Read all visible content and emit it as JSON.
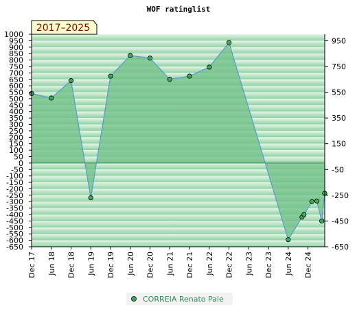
{
  "chart_data": {
    "type": "area",
    "title": "WOF ratinglist",
    "period_badge": "2017–2025",
    "left_y_ticks": [
      1000,
      950,
      900,
      850,
      800,
      750,
      700,
      650,
      600,
      550,
      500,
      450,
      400,
      350,
      300,
      250,
      200,
      150,
      100,
      50,
      0,
      -50,
      -100,
      -150,
      -200,
      -250,
      -300,
      -350,
      -400,
      -450,
      -500,
      -550,
      -600,
      -650
    ],
    "right_y_ticks": [
      950,
      750,
      550,
      350,
      150,
      -50,
      -250,
      -450,
      -650
    ],
    "ylim": [
      -650,
      1000
    ],
    "x_ticks": [
      "Dec 17",
      "Jun 18",
      "Dec 18",
      "Jun 19",
      "Dec 19",
      "Jun 20",
      "Dec 20",
      "Jun 21",
      "Dec 21",
      "Jun 22",
      "Dec 22",
      "Jun 23",
      "Dec 23",
      "Jun 24",
      "Dec 24"
    ],
    "series": [
      {
        "name": "CORREIA Renato Paie",
        "color": "#2e8b57",
        "x": [
          0,
          1,
          2,
          3,
          4,
          5,
          6,
          7,
          8,
          9,
          10,
          13,
          13.7,
          13.8,
          14.2,
          14.45,
          14.7,
          14.85
        ],
        "y": [
          540,
          505,
          640,
          -270,
          675,
          835,
          815,
          650,
          675,
          745,
          935,
          -595,
          -420,
          -400,
          -300,
          -295,
          -450,
          -235
        ]
      }
    ],
    "colors": {
      "band_dark": "#8fd1a0",
      "band_light": "#e6f5ea",
      "fill": "#6fbf85",
      "line": "#5b9bd5",
      "marker": "#3ea85a"
    }
  }
}
